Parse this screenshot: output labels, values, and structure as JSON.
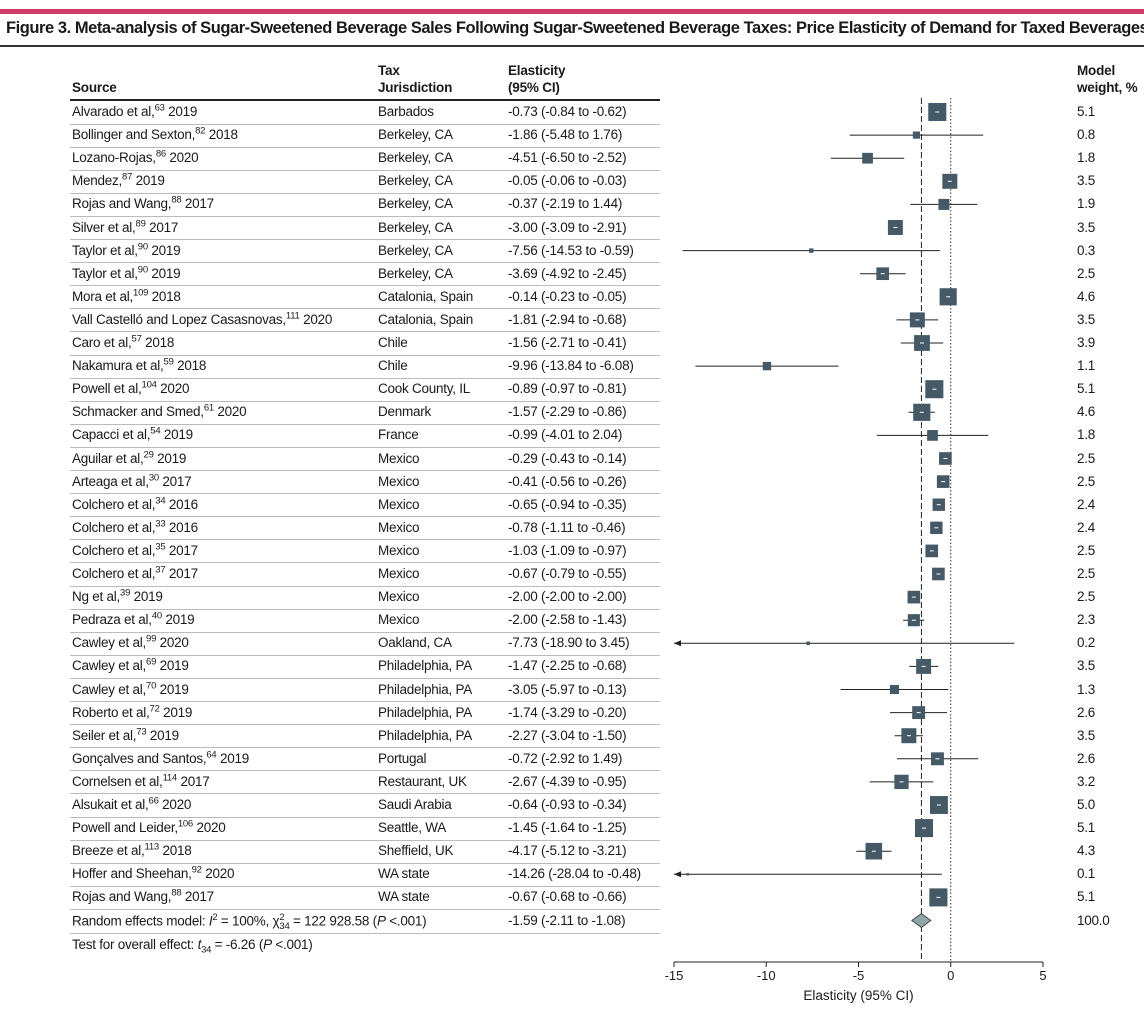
{
  "title": "Figure 3. Meta-analysis of Sugar-Sweetened Beverage Sales Following Sugar-Sweetened Beverage Taxes: Price Elasticity of Demand for Taxed Beverages",
  "headers": {
    "source": "Source",
    "jurisdiction_1": "Tax",
    "jurisdiction_2": "Jurisdiction",
    "elasticity_1": "Elasticity",
    "elasticity_2": "(95% CI)",
    "weight_1": "Model",
    "weight_2": "weight, %"
  },
  "chart_data": {
    "type": "forest",
    "title": "Price Elasticity of Demand for Taxed Beverages",
    "xlabel": "Elasticity (95% CI)",
    "xlim": [
      -15,
      5
    ],
    "xticks": [
      "-15",
      "-10",
      "-5",
      "0",
      "5"
    ],
    "reference_line": 0,
    "pooled_line": -1.59,
    "studies": [
      {
        "author": "Alvarado et al,",
        "ref": "63",
        "year": "2019",
        "jurisdiction": "Barbados",
        "est": -0.73,
        "lo": -0.84,
        "hi": -0.62,
        "ci_text": "-0.73 (-0.84 to -0.62)",
        "weight": "5.1"
      },
      {
        "author": "Bollinger and Sexton,",
        "ref": "82",
        "year": "2018",
        "jurisdiction": "Berkeley, CA",
        "est": -1.86,
        "lo": -5.48,
        "hi": 1.76,
        "ci_text": "-1.86 (-5.48 to 1.76)",
        "weight": "0.8"
      },
      {
        "author": "Lozano-Rojas,",
        "ref": "86",
        "year": "2020",
        "jurisdiction": "Berkeley, CA",
        "est": -4.51,
        "lo": -6.5,
        "hi": -2.52,
        "ci_text": "-4.51 (-6.50 to -2.52)",
        "weight": "1.8"
      },
      {
        "author": "Mendez,",
        "ref": "87",
        "year": "2019",
        "jurisdiction": "Berkeley, CA",
        "est": -0.05,
        "lo": -0.06,
        "hi": -0.03,
        "ci_text": "-0.05 (-0.06 to -0.03)",
        "weight": "3.5"
      },
      {
        "author": "Rojas and Wang,",
        "ref": "88",
        "year": "2017",
        "jurisdiction": "Berkeley, CA",
        "est": -0.37,
        "lo": -2.19,
        "hi": 1.44,
        "ci_text": "-0.37 (-2.19 to 1.44)",
        "weight": "1.9"
      },
      {
        "author": "Silver et al,",
        "ref": "89",
        "year": "2017",
        "jurisdiction": "Berkeley, CA",
        "est": -3.0,
        "lo": -3.09,
        "hi": -2.91,
        "ci_text": "-3.00 (-3.09 to -2.91)",
        "weight": "3.5"
      },
      {
        "author": "Taylor et al,",
        "ref": "90",
        "year": "2019",
        "jurisdiction": "Berkeley, CA",
        "est": -7.56,
        "lo": -14.53,
        "hi": -0.59,
        "ci_text": "-7.56 (-14.53 to -0.59)",
        "weight": "0.3"
      },
      {
        "author": "Taylor et al,",
        "ref": "90",
        "year": "2019",
        "jurisdiction": "Berkeley, CA",
        "est": -3.69,
        "lo": -4.92,
        "hi": -2.45,
        "ci_text": "-3.69 (-4.92 to -2.45)",
        "weight": "2.5"
      },
      {
        "author": "Mora et al,",
        "ref": "109",
        "year": "2018",
        "jurisdiction": "Catalonia, Spain",
        "est": -0.14,
        "lo": -0.23,
        "hi": -0.05,
        "ci_text": "-0.14 (-0.23 to -0.05)",
        "weight": "4.6"
      },
      {
        "author": "Vall Castelló and Lopez Casasnovas,",
        "ref": "111",
        "year": "2020",
        "jurisdiction": "Catalonia, Spain",
        "est": -1.81,
        "lo": -2.94,
        "hi": -0.68,
        "ci_text": "-1.81 (-2.94 to -0.68)",
        "weight": "3.5"
      },
      {
        "author": "Caro et al,",
        "ref": "57",
        "year": "2018",
        "jurisdiction": "Chile",
        "est": -1.56,
        "lo": -2.71,
        "hi": -0.41,
        "ci_text": "-1.56 (-2.71 to -0.41)",
        "weight": "3.9"
      },
      {
        "author": "Nakamura et al,",
        "ref": "59",
        "year": "2018",
        "jurisdiction": "Chile",
        "est": -9.96,
        "lo": -13.84,
        "hi": -6.08,
        "ci_text": "-9.96 (-13.84 to -6.08)",
        "weight": "1.1"
      },
      {
        "author": "Powell et al,",
        "ref": "104",
        "year": "2020",
        "jurisdiction": "Cook County, IL",
        "est": -0.89,
        "lo": -0.97,
        "hi": -0.81,
        "ci_text": "-0.89 (-0.97 to -0.81)",
        "weight": "5.1"
      },
      {
        "author": "Schmacker and Smed,",
        "ref": "61",
        "year": "2020",
        "jurisdiction": "Denmark",
        "est": -1.57,
        "lo": -2.29,
        "hi": -0.86,
        "ci_text": "-1.57 (-2.29 to -0.86)",
        "weight": "4.6"
      },
      {
        "author": "Capacci et al,",
        "ref": "54",
        "year": "2019",
        "jurisdiction": "France",
        "est": -0.99,
        "lo": -4.01,
        "hi": 2.04,
        "ci_text": "-0.99 (-4.01 to 2.04)",
        "weight": "1.8"
      },
      {
        "author": "Aguilar et al,",
        "ref": "29",
        "year": "2019",
        "jurisdiction": "Mexico",
        "est": -0.29,
        "lo": -0.43,
        "hi": -0.14,
        "ci_text": "-0.29 (-0.43 to -0.14)",
        "weight": "2.5"
      },
      {
        "author": "Arteaga et al,",
        "ref": "30",
        "year": "2017",
        "jurisdiction": "Mexico",
        "est": -0.41,
        "lo": -0.56,
        "hi": -0.26,
        "ci_text": "-0.41 (-0.56 to -0.26)",
        "weight": "2.5"
      },
      {
        "author": "Colchero et al,",
        "ref": "34",
        "year": "2016",
        "jurisdiction": "Mexico",
        "est": -0.65,
        "lo": -0.94,
        "hi": -0.35,
        "ci_text": "-0.65 (-0.94 to -0.35)",
        "weight": "2.4"
      },
      {
        "author": "Colchero et al,",
        "ref": "33",
        "year": "2016",
        "jurisdiction": "Mexico",
        "est": -0.78,
        "lo": -1.11,
        "hi": -0.46,
        "ci_text": "-0.78 (-1.11 to -0.46)",
        "weight": "2.4"
      },
      {
        "author": "Colchero et al,",
        "ref": "35",
        "year": "2017",
        "jurisdiction": "Mexico",
        "est": -1.03,
        "lo": -1.09,
        "hi": -0.97,
        "ci_text": "-1.03 (-1.09 to -0.97)",
        "weight": "2.5"
      },
      {
        "author": "Colchero et al,",
        "ref": "37",
        "year": "2017",
        "jurisdiction": "Mexico",
        "est": -0.67,
        "lo": -0.79,
        "hi": -0.55,
        "ci_text": "-0.67 (-0.79 to -0.55)",
        "weight": "2.5"
      },
      {
        "author": "Ng et al,",
        "ref": "39",
        "year": "2019",
        "jurisdiction": "Mexico",
        "est": -2.0,
        "lo": -2.0,
        "hi": -2.0,
        "ci_text": "-2.00 (-2.00 to -2.00)",
        "weight": "2.5"
      },
      {
        "author": "Pedraza et al,",
        "ref": "40",
        "year": "2019",
        "jurisdiction": "Mexico",
        "est": -2.0,
        "lo": -2.58,
        "hi": -1.43,
        "ci_text": "-2.00 (-2.58 to -1.43)",
        "weight": "2.3"
      },
      {
        "author": "Cawley et al,",
        "ref": "99",
        "year": "2020",
        "jurisdiction": "Oakland, CA",
        "est": -7.73,
        "lo": -18.9,
        "hi": 3.45,
        "ci_text": "-7.73 (-18.90 to 3.45)",
        "weight": "0.2"
      },
      {
        "author": "Cawley et al,",
        "ref": "69",
        "year": "2019",
        "jurisdiction": "Philadelphia, PA",
        "est": -1.47,
        "lo": -2.25,
        "hi": -0.68,
        "ci_text": "-1.47 (-2.25 to -0.68)",
        "weight": "3.5"
      },
      {
        "author": "Cawley et al,",
        "ref": "70",
        "year": "2019",
        "jurisdiction": "Philadelphia, PA",
        "est": -3.05,
        "lo": -5.97,
        "hi": -0.13,
        "ci_text": "-3.05 (-5.97 to -0.13)",
        "weight": "1.3"
      },
      {
        "author": "Roberto et al,",
        "ref": "72",
        "year": "2019",
        "jurisdiction": "Philadelphia, PA",
        "est": -1.74,
        "lo": -3.29,
        "hi": -0.2,
        "ci_text": "-1.74 (-3.29 to -0.20)",
        "weight": "2.6"
      },
      {
        "author": "Seiler et al,",
        "ref": "73",
        "year": "2019",
        "jurisdiction": "Philadelphia, PA",
        "est": -2.27,
        "lo": -3.04,
        "hi": -1.5,
        "ci_text": "-2.27 (-3.04 to -1.50)",
        "weight": "3.5"
      },
      {
        "author": "Gonçalves and Santos,",
        "ref": "64",
        "year": "2019",
        "jurisdiction": "Portugal",
        "est": -0.72,
        "lo": -2.92,
        "hi": 1.49,
        "ci_text": "-0.72 (-2.92 to 1.49)",
        "weight": "2.6"
      },
      {
        "author": "Cornelsen et al,",
        "ref": "114",
        "year": "2017",
        "jurisdiction": "Restaurant, UK",
        "est": -2.67,
        "lo": -4.39,
        "hi": -0.95,
        "ci_text": "-2.67 (-4.39 to -0.95)",
        "weight": "3.2"
      },
      {
        "author": "Alsukait et al,",
        "ref": "66",
        "year": "2020",
        "jurisdiction": "Saudi Arabia",
        "est": -0.64,
        "lo": -0.93,
        "hi": -0.34,
        "ci_text": "-0.64 (-0.93 to -0.34)",
        "weight": "5.0"
      },
      {
        "author": "Powell and Leider,",
        "ref": "106",
        "year": "2020",
        "jurisdiction": "Seattle, WA",
        "est": -1.45,
        "lo": -1.64,
        "hi": -1.25,
        "ci_text": "-1.45 (-1.64 to -1.25)",
        "weight": "5.1"
      },
      {
        "author": "Breeze et al,",
        "ref": "113",
        "year": "2018",
        "jurisdiction": "Sheffield, UK",
        "est": -4.17,
        "lo": -5.12,
        "hi": -3.21,
        "ci_text": "-4.17 (-5.12 to -3.21)",
        "weight": "4.3"
      },
      {
        "author": "Hoffer and Sheehan,",
        "ref": "92",
        "year": "2020",
        "jurisdiction": "WA state",
        "est": -14.26,
        "lo": -28.04,
        "hi": -0.48,
        "ci_text": "-14.26 (-28.04 to -0.48)",
        "weight": "0.1"
      },
      {
        "author": "Rojas and Wang,",
        "ref": "88",
        "year": "2017",
        "jurisdiction": "WA state",
        "est": -0.67,
        "lo": -0.68,
        "hi": -0.66,
        "ci_text": "-0.67 (-0.68 to -0.66)",
        "weight": "5.1"
      }
    ],
    "pooled": {
      "label_a": "Random effects model: ",
      "i2_sym": "I",
      "i2_sup": "2",
      "label_b": " = 100%, χ",
      "chi_sup": "2",
      "chi_sub": "34",
      "label_c": " = 122 928.58 (",
      "p_sym": "P",
      "label_d": " <.001)",
      "est": -1.59,
      "lo": -2.11,
      "hi": -1.08,
      "ci_text": "-1.59 (-2.11 to -1.08)",
      "weight": "100.0"
    },
    "overall_test": {
      "label_a": "Test for overall effect: ",
      "t_sym": "t",
      "t_sub": "34",
      "label_b": " = -6.26 (",
      "p_sym": "P",
      "label_c": " <.001)"
    }
  }
}
